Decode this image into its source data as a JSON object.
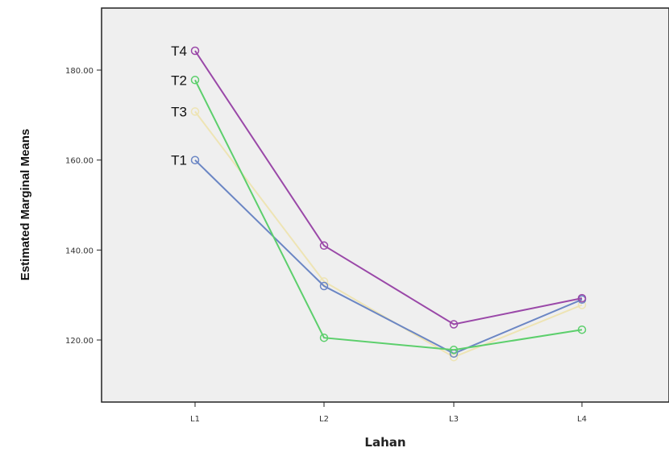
{
  "chart_data": {
    "type": "line",
    "title": "",
    "xlabel": "Lahan",
    "ylabel": "Estimated Marginal Means",
    "categories": [
      "L1",
      "L2",
      "L3",
      "L4"
    ],
    "yticks": [
      "120.00",
      "140.00",
      "160.00",
      "180.00"
    ],
    "ylim": [
      105,
      195
    ],
    "grid": false,
    "series": [
      {
        "name": "T1",
        "color": "#6b86c4",
        "values": [
          160.0,
          132.0,
          117.0,
          129.0
        ]
      },
      {
        "name": "T2",
        "color": "#5ccf6c",
        "values": [
          177.8,
          120.5,
          117.8,
          122.3
        ]
      },
      {
        "name": "T3",
        "color": "#eee4b4",
        "values": [
          170.8,
          133.0,
          116.2,
          127.8
        ]
      },
      {
        "name": "T4",
        "color": "#9a48a8",
        "values": [
          184.3,
          141.0,
          123.5,
          129.3
        ]
      }
    ]
  }
}
